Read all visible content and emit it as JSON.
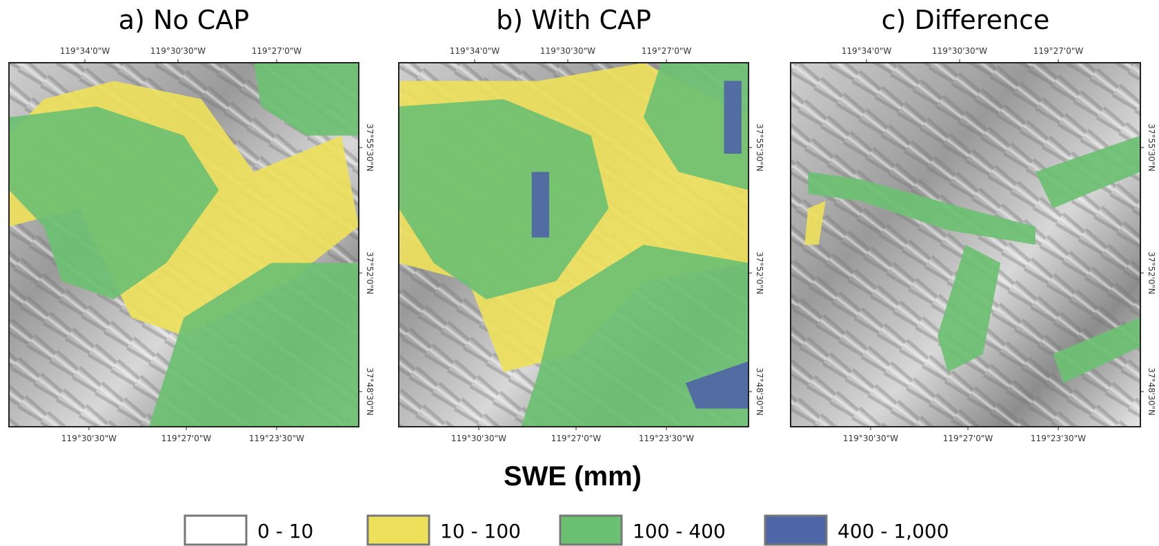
{
  "panels": [
    {
      "title": "a) No CAP",
      "top_ticks": [
        "119°34'0\"W",
        "119°30'30\"W",
        "119°27'0\"W"
      ],
      "bottom_ticks": [
        "119°30'30\"W",
        "119°27'0\"W",
        "119°23'30\"W"
      ],
      "right_ticks": [
        "37°55'30\"N",
        "37°52'0\"N",
        "37°48'30\"N"
      ]
    },
    {
      "title": "b) With CAP",
      "top_ticks": [
        "119°34'0\"W",
        "119°30'30\"W",
        "119°27'0\"W"
      ],
      "bottom_ticks": [
        "119°30'30\"W",
        "119°27'0\"W",
        "119°23'30\"W"
      ],
      "right_ticks": [
        "37°55'30\"N",
        "37°52'0\"N",
        "37°48'30\"N"
      ]
    },
    {
      "title": "c) Difference",
      "top_ticks": [
        "119°34'0\"W",
        "119°30'30\"W",
        "119°27'0\"W"
      ],
      "bottom_ticks": [
        "119°30'30\"W",
        "119°27'0\"W",
        "119°23'30\"W"
      ],
      "right_ticks": [
        "37°55'30\"N",
        "37°52'0\"N",
        "37°48'30\"N"
      ]
    }
  ],
  "legend_title": "SWE (mm)",
  "legend": [
    {
      "label": "0 - 10",
      "color": "#ffffff"
    },
    {
      "label": "10 - 100",
      "color": "#ede15b"
    },
    {
      "label": "100 - 400",
      "color": "#6cc072"
    },
    {
      "label": "400 - 1,000",
      "color": "#4f66a6"
    }
  ]
}
